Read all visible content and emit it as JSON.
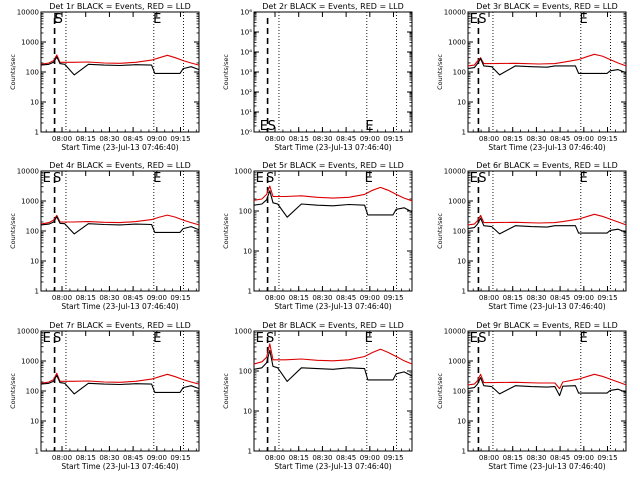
{
  "figure": {
    "subtitle": "Start Time (23-Jul-13 07:46:40)",
    "x_ticks": [
      "08:00",
      "08:15",
      "08:30",
      "08:45",
      "09:00",
      "09:15"
    ],
    "ylabel": "Counts/sec",
    "colors": {
      "events": "#000000",
      "lld": "#dd0000",
      "background": "#ffffff"
    }
  },
  "chart_data": [
    {
      "type": "line",
      "title": "Det 1r BLACK = Events, RED = LLD",
      "log_y": true,
      "ylim": [
        1,
        10000
      ],
      "y_ticks": [
        "1",
        "10",
        "100",
        "1000",
        "10000"
      ],
      "markers": [
        {
          "label": "E",
          "pos": "top",
          "t": 7.6
        },
        {
          "label": "S",
          "pos": "top",
          "t": 8.6
        },
        {
          "label": "E",
          "pos": "top",
          "t": 71.0
        }
      ],
      "dashed_t": [
        8.6
      ],
      "dotted_t": [
        15.8,
        71.4,
        90.2
      ],
      "series": [
        {
          "name": "LLD",
          "color": "#dd0000",
          "x": [
            0,
            5,
            8,
            10,
            12,
            20,
            30,
            40,
            50,
            60,
            70,
            75,
            80,
            85,
            90,
            95,
            100
          ],
          "y": [
            180,
            200,
            240,
            370,
            210,
            210,
            215,
            200,
            195,
            210,
            250,
            300,
            360,
            300,
            240,
            200,
            170
          ]
        },
        {
          "name": "Events",
          "color": "#000000",
          "x": [
            0,
            5,
            8,
            10,
            12,
            15,
            21,
            30,
            40,
            50,
            60,
            70,
            72,
            88,
            90,
            95,
            100
          ],
          "y": [
            170,
            180,
            210,
            320,
            190,
            180,
            80,
            180,
            170,
            165,
            175,
            170,
            90,
            90,
            130,
            150,
            120
          ]
        }
      ]
    },
    {
      "type": "line",
      "title": "Det 2r BLACK = Events, RED = LLD",
      "log_y": true,
      "ylim": [
        1,
        1000000
      ],
      "y_ticks": [
        "10⁰",
        "10¹",
        "10²",
        "10³",
        "10⁴",
        "10⁵",
        "10⁶"
      ],
      "markers": [
        {
          "label": "E",
          "pos": "bottom",
          "t": 3.6
        },
        {
          "label": "S",
          "pos": "bottom",
          "t": 8.6
        },
        {
          "label": "E",
          "pos": "bottom",
          "t": 70.5
        }
      ],
      "dashed_t": [
        8.6
      ],
      "dotted_t": [
        15.8,
        71.4,
        90.2
      ],
      "series": []
    },
    {
      "type": "line",
      "title": "Det 3r BLACK = Events, RED = LLD",
      "log_y": true,
      "ylim": [
        1,
        10000
      ],
      "y_ticks": [
        "1",
        "10",
        "100",
        "1000",
        "10000"
      ],
      "markers": [
        {
          "label": "E",
          "pos": "top",
          "t": 1.0
        },
        {
          "label": "S",
          "pos": "top",
          "t": 6.5
        },
        {
          "label": "E",
          "pos": "top",
          "t": 70.6
        }
      ],
      "dashed_t": [
        6.6
      ],
      "dotted_t": [
        15.8,
        71.4,
        90.2
      ],
      "series": [
        {
          "name": "LLD",
          "color": "#dd0000",
          "x": [
            0,
            4,
            6,
            8,
            10,
            15,
            30,
            45,
            55,
            60,
            70,
            75,
            80,
            85,
            90,
            95,
            100
          ],
          "y": [
            160,
            170,
            230,
            300,
            190,
            190,
            195,
            185,
            190,
            210,
            260,
            320,
            390,
            340,
            260,
            200,
            160
          ]
        },
        {
          "name": "Events",
          "color": "#000000",
          "x": [
            0,
            4,
            6,
            8,
            10,
            15,
            20,
            30,
            40,
            50,
            55,
            68,
            70,
            88,
            90,
            95,
            100
          ],
          "y": [
            130,
            140,
            190,
            280,
            160,
            150,
            80,
            160,
            150,
            145,
            160,
            160,
            90,
            90,
            110,
            120,
            95
          ]
        }
      ]
    },
    {
      "type": "line",
      "title": "Det 4r BLACK = Events, RED = LLD",
      "log_y": true,
      "ylim": [
        1,
        10000
      ],
      "y_ticks": [
        "1",
        "10",
        "100",
        "1000",
        "10000"
      ],
      "markers": [
        {
          "label": "E",
          "pos": "top",
          "t": 1.0
        },
        {
          "label": "S",
          "pos": "top",
          "t": 7.6
        },
        {
          "label": "E",
          "pos": "top",
          "t": 71.0
        }
      ],
      "dashed_t": [
        8.6
      ],
      "dotted_t": [
        15.8,
        71.4,
        90.2
      ],
      "series": [
        {
          "name": "LLD",
          "color": "#dd0000",
          "x": [
            0,
            5,
            8,
            10,
            12,
            20,
            30,
            40,
            50,
            60,
            70,
            75,
            80,
            85,
            90,
            95,
            100
          ],
          "y": [
            170,
            190,
            230,
            330,
            200,
            200,
            205,
            195,
            190,
            205,
            240,
            290,
            340,
            290,
            230,
            190,
            160
          ]
        },
        {
          "name": "Events",
          "color": "#000000",
          "x": [
            0,
            5,
            8,
            10,
            12,
            15,
            21,
            30,
            40,
            50,
            60,
            70,
            72,
            88,
            90,
            95,
            100
          ],
          "y": [
            160,
            170,
            200,
            300,
            180,
            175,
            80,
            175,
            165,
            160,
            170,
            165,
            90,
            90,
            120,
            140,
            110
          ]
        }
      ]
    },
    {
      "type": "line",
      "title": "Det 5r BLACK = Events, RED = LLD",
      "log_y": true,
      "ylim": [
        1,
        1000
      ],
      "y_ticks": [
        "1",
        "10",
        "100",
        "1000"
      ],
      "markers": [
        {
          "label": "E",
          "pos": "top",
          "t": 1.0
        },
        {
          "label": "S",
          "pos": "top",
          "t": 7.6
        },
        {
          "label": "E",
          "pos": "top",
          "t": 70.0
        }
      ],
      "dashed_t": [
        8.6
      ],
      "dotted_t": [
        15.8,
        71.4,
        90.2
      ],
      "series": [
        {
          "name": "LLD",
          "color": "#dd0000",
          "x": [
            0,
            5,
            8,
            10,
            12,
            20,
            30,
            40,
            50,
            60,
            70,
            75,
            80,
            85,
            90,
            95,
            100
          ],
          "y": [
            185,
            200,
            260,
            420,
            230,
            230,
            240,
            220,
            210,
            220,
            260,
            330,
            390,
            330,
            260,
            210,
            180
          ]
        },
        {
          "name": "Events",
          "color": "#000000",
          "x": [
            0,
            5,
            8,
            10,
            12,
            15,
            21,
            30,
            40,
            50,
            60,
            70,
            72,
            88,
            90,
            95,
            100
          ],
          "y": [
            140,
            150,
            190,
            320,
            160,
            150,
            70,
            150,
            140,
            135,
            145,
            140,
            80,
            80,
            110,
            120,
            95
          ]
        }
      ]
    },
    {
      "type": "line",
      "title": "Det 6r BLACK = Events, RED = LLD",
      "log_y": true,
      "ylim": [
        1,
        10000
      ],
      "y_ticks": [
        "1",
        "10",
        "100",
        "1000",
        "10000"
      ],
      "markers": [
        {
          "label": "E",
          "pos": "top",
          "t": 1.0
        },
        {
          "label": "S",
          "pos": "top",
          "t": 6.5
        },
        {
          "label": "E",
          "pos": "top",
          "t": 70.6
        }
      ],
      "dashed_t": [
        6.6
      ],
      "dotted_t": [
        15.8,
        71.4,
        90.2
      ],
      "series": [
        {
          "name": "LLD",
          "color": "#dd0000",
          "x": [
            0,
            4,
            6,
            8,
            10,
            15,
            30,
            45,
            55,
            60,
            70,
            75,
            80,
            85,
            90,
            95,
            100
          ],
          "y": [
            160,
            170,
            220,
            330,
            190,
            190,
            195,
            185,
            190,
            205,
            250,
            300,
            360,
            310,
            250,
            200,
            160
          ]
        },
        {
          "name": "Events",
          "color": "#000000",
          "x": [
            0,
            4,
            6,
            8,
            10,
            15,
            20,
            30,
            40,
            50,
            55,
            68,
            70,
            88,
            90,
            95,
            100
          ],
          "y": [
            120,
            130,
            170,
            270,
            150,
            140,
            80,
            150,
            140,
            135,
            150,
            150,
            85,
            85,
            105,
            115,
            90
          ]
        }
      ]
    },
    {
      "type": "line",
      "title": "Det 7r BLACK = Events, RED = LLD",
      "log_y": true,
      "ylim": [
        1,
        10000
      ],
      "y_ticks": [
        "1",
        "10",
        "100",
        "1000",
        "10000"
      ],
      "markers": [
        {
          "label": "E",
          "pos": "top",
          "t": 1.0
        },
        {
          "label": "S",
          "pos": "top",
          "t": 7.6
        },
        {
          "label": "E",
          "pos": "top",
          "t": 71.0
        }
      ],
      "dashed_t": [
        8.6
      ],
      "dotted_t": [
        15.8,
        71.4,
        90.2
      ],
      "series": [
        {
          "name": "LLD",
          "color": "#dd0000",
          "x": [
            0,
            5,
            8,
            10,
            12,
            20,
            30,
            40,
            50,
            60,
            70,
            75,
            80,
            85,
            90,
            95,
            100
          ],
          "y": [
            180,
            200,
            240,
            390,
            210,
            210,
            215,
            200,
            195,
            210,
            250,
            300,
            360,
            300,
            240,
            200,
            170
          ]
        },
        {
          "name": "Events",
          "color": "#000000",
          "x": [
            0,
            5,
            8,
            10,
            12,
            15,
            21,
            30,
            40,
            50,
            60,
            70,
            72,
            88,
            90,
            95,
            100
          ],
          "y": [
            170,
            180,
            210,
            330,
            190,
            180,
            80,
            180,
            170,
            165,
            175,
            170,
            90,
            90,
            130,
            150,
            120
          ]
        }
      ]
    },
    {
      "type": "line",
      "title": "Det 8r BLACK = Events, RED = LLD",
      "log_y": true,
      "ylim": [
        1,
        1000
      ],
      "y_ticks": [
        "1",
        "10",
        "100",
        "1000"
      ],
      "markers": [
        {
          "label": "E",
          "pos": "top",
          "t": 1.0
        },
        {
          "label": "S",
          "pos": "top",
          "t": 7.6
        },
        {
          "label": "E",
          "pos": "top",
          "t": 70.0
        }
      ],
      "dashed_t": [
        8.6
      ],
      "dotted_t": [
        15.8,
        71.4,
        90.2
      ],
      "series": [
        {
          "name": "LLD",
          "color": "#dd0000",
          "x": [
            0,
            5,
            8,
            10,
            12,
            20,
            30,
            40,
            50,
            60,
            70,
            75,
            80,
            85,
            90,
            95,
            100
          ],
          "y": [
            150,
            170,
            220,
            480,
            190,
            190,
            200,
            185,
            180,
            190,
            230,
            290,
            350,
            290,
            230,
            180,
            150
          ]
        },
        {
          "name": "Events",
          "color": "#000000",
          "x": [
            0,
            5,
            8,
            10,
            12,
            15,
            21,
            30,
            40,
            50,
            60,
            70,
            72,
            88,
            90,
            95,
            100
          ],
          "y": [
            110,
            120,
            160,
            330,
            130,
            120,
            55,
            120,
            115,
            110,
            120,
            115,
            60,
            60,
            85,
            95,
            75
          ]
        }
      ]
    },
    {
      "type": "line",
      "title": "Det 9r BLACK = Events, RED = LLD",
      "log_y": true,
      "ylim": [
        1,
        10000
      ],
      "y_ticks": [
        "1",
        "10",
        "100",
        "1000",
        "10000"
      ],
      "markers": [
        {
          "label": "E",
          "pos": "top",
          "t": 1.0
        },
        {
          "label": "S",
          "pos": "top",
          "t": 6.5
        },
        {
          "label": "E",
          "pos": "top",
          "t": 70.6
        }
      ],
      "dashed_t": [
        6.6
      ],
      "dotted_t": [
        15.8,
        71.4,
        90.2
      ],
      "series": [
        {
          "name": "LLD",
          "color": "#dd0000",
          "x": [
            0,
            4,
            6,
            8,
            10,
            15,
            30,
            45,
            55,
            58,
            60,
            70,
            75,
            80,
            85,
            90,
            95,
            100
          ],
          "y": [
            160,
            170,
            220,
            360,
            190,
            190,
            195,
            185,
            185,
            120,
            200,
            250,
            300,
            360,
            310,
            250,
            200,
            160
          ]
        },
        {
          "name": "Events",
          "color": "#000000",
          "x": [
            0,
            4,
            6,
            8,
            10,
            15,
            20,
            30,
            40,
            50,
            55,
            58,
            60,
            68,
            70,
            88,
            90,
            95,
            100
          ],
          "y": [
            120,
            130,
            170,
            280,
            150,
            140,
            80,
            150,
            140,
            135,
            140,
            70,
            145,
            150,
            85,
            85,
            105,
            115,
            90
          ]
        }
      ]
    }
  ]
}
